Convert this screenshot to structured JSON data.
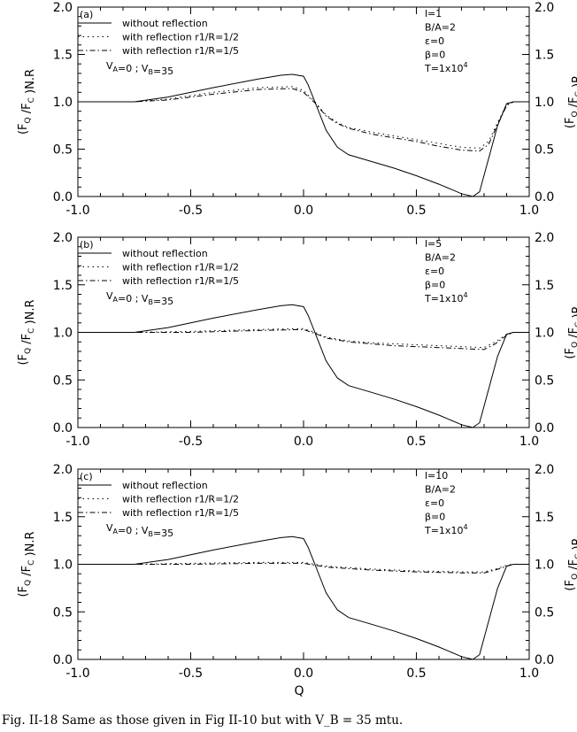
{
  "caption": "Fig. II-18 Same as those given in Fig II-10 but with V_B = 35 mtu.",
  "chart_data": [
    {
      "type": "line",
      "panel_label": "(a)",
      "xlabel": "",
      "ylabel_left": "(F_Q /F_C )N.R",
      "ylabel_right": "(F_Q /F_C )R",
      "xlim": [
        -1.0,
        1.0
      ],
      "ylim": [
        0.0,
        2.0
      ],
      "xticks": [
        "-1.0",
        "-0.5",
        "0.0",
        "0.5",
        "1.0"
      ],
      "yticks": [
        "0.0",
        "0.5",
        "1.0",
        "1.5",
        "2.0"
      ],
      "params": [
        "l=1",
        "B/A=2",
        "ε=0",
        "β=0",
        "T=1x10^4"
      ],
      "velocity_note": "V_A=0 ; V_B=35",
      "legend_position": "top-left",
      "series": [
        {
          "name": "without reflection",
          "style": "solid",
          "x": [
            -1.0,
            -0.75,
            -0.6,
            -0.4,
            -0.2,
            -0.1,
            -0.05,
            0.0,
            0.02,
            0.05,
            0.1,
            0.15,
            0.2,
            0.3,
            0.4,
            0.5,
            0.6,
            0.7,
            0.75,
            0.78,
            0.82,
            0.86,
            0.9,
            0.93,
            1.0
          ],
          "y": [
            1.0,
            1.0,
            1.05,
            1.15,
            1.24,
            1.28,
            1.29,
            1.27,
            1.18,
            1.0,
            0.7,
            0.52,
            0.44,
            0.37,
            0.3,
            0.22,
            0.13,
            0.03,
            0.0,
            0.05,
            0.4,
            0.75,
            0.98,
            1.0,
            1.0
          ]
        },
        {
          "name": "with reflection r1/R=1/2",
          "style": "dotted",
          "x": [
            -1.0,
            -0.75,
            -0.6,
            -0.4,
            -0.2,
            -0.05,
            0.0,
            0.05,
            0.1,
            0.15,
            0.2,
            0.3,
            0.4,
            0.5,
            0.6,
            0.7,
            0.78,
            0.82,
            0.86,
            0.9,
            0.93,
            1.0
          ],
          "y": [
            1.0,
            1.0,
            1.03,
            1.1,
            1.15,
            1.16,
            1.12,
            1.0,
            0.86,
            0.78,
            0.73,
            0.68,
            0.64,
            0.6,
            0.56,
            0.52,
            0.51,
            0.58,
            0.78,
            0.97,
            1.0,
            1.0
          ]
        },
        {
          "name": "with reflection r1/R=1/5",
          "style": "dash-dot",
          "x": [
            -1.0,
            -0.75,
            -0.6,
            -0.4,
            -0.2,
            -0.05,
            0.0,
            0.05,
            0.1,
            0.15,
            0.2,
            0.3,
            0.4,
            0.5,
            0.6,
            0.7,
            0.78,
            0.82,
            0.86,
            0.9,
            0.93,
            1.0
          ],
          "y": [
            1.0,
            1.0,
            1.02,
            1.08,
            1.13,
            1.14,
            1.1,
            0.99,
            0.85,
            0.77,
            0.72,
            0.66,
            0.62,
            0.58,
            0.53,
            0.49,
            0.48,
            0.55,
            0.76,
            0.96,
            1.0,
            1.0
          ]
        }
      ]
    },
    {
      "type": "line",
      "panel_label": "(b)",
      "xlabel": "",
      "ylabel_left": "(F_Q /F_C )N.R",
      "ylabel_right": "(F_Q /F_C )R",
      "xlim": [
        -1.0,
        1.0
      ],
      "ylim": [
        0.0,
        2.0
      ],
      "xticks": [
        "-1.0",
        "-0.5",
        "0.0",
        "0.5",
        "1.0"
      ],
      "yticks": [
        "0.0",
        "0.5",
        "1.0",
        "1.5",
        "2.0"
      ],
      "params": [
        "l=5",
        "B/A=2",
        "ε=0",
        "β=0",
        "T=1x10^4"
      ],
      "velocity_note": "V_A=0 ; V_B=35",
      "legend_position": "top-left",
      "series": [
        {
          "name": "without reflection",
          "style": "solid",
          "x": [
            -1.0,
            -0.75,
            -0.6,
            -0.4,
            -0.2,
            -0.1,
            -0.05,
            0.0,
            0.02,
            0.05,
            0.1,
            0.15,
            0.2,
            0.3,
            0.4,
            0.5,
            0.6,
            0.7,
            0.75,
            0.78,
            0.82,
            0.86,
            0.9,
            0.93,
            1.0
          ],
          "y": [
            1.0,
            1.0,
            1.05,
            1.15,
            1.24,
            1.28,
            1.29,
            1.27,
            1.18,
            1.0,
            0.7,
            0.52,
            0.44,
            0.37,
            0.3,
            0.22,
            0.13,
            0.03,
            0.0,
            0.05,
            0.4,
            0.75,
            0.98,
            1.0,
            1.0
          ]
        },
        {
          "name": "with reflection r1/R=1/2",
          "style": "dotted",
          "x": [
            -1.0,
            -0.75,
            -0.5,
            -0.2,
            0.0,
            0.05,
            0.1,
            0.2,
            0.3,
            0.4,
            0.5,
            0.6,
            0.7,
            0.8,
            0.85,
            0.9,
            0.93,
            1.0
          ],
          "y": [
            1.0,
            1.0,
            1.01,
            1.03,
            1.04,
            1.0,
            0.95,
            0.91,
            0.89,
            0.88,
            0.87,
            0.86,
            0.85,
            0.84,
            0.9,
            0.98,
            1.0,
            1.0
          ]
        },
        {
          "name": "with reflection r1/R=1/5",
          "style": "dash-dot",
          "x": [
            -1.0,
            -0.75,
            -0.5,
            -0.2,
            0.0,
            0.05,
            0.1,
            0.2,
            0.3,
            0.4,
            0.5,
            0.6,
            0.7,
            0.8,
            0.85,
            0.9,
            0.93,
            1.0
          ],
          "y": [
            1.0,
            1.0,
            1.0,
            1.02,
            1.03,
            0.99,
            0.94,
            0.9,
            0.88,
            0.86,
            0.85,
            0.84,
            0.83,
            0.82,
            0.88,
            0.97,
            1.0,
            1.0
          ]
        }
      ]
    },
    {
      "type": "line",
      "panel_label": "(c)",
      "xlabel": "Q",
      "ylabel_left": "(F_Q /F_C )N.R",
      "ylabel_right": "(F_Q /F_C )R",
      "xlim": [
        -1.0,
        1.0
      ],
      "ylim": [
        0.0,
        2.0
      ],
      "xticks": [
        "-1.0",
        "-0.5",
        "0.0",
        "0.5",
        "1.0"
      ],
      "yticks": [
        "0.0",
        "0.5",
        "1.0",
        "1.5",
        "2.0"
      ],
      "params": [
        "l=10",
        "B/A=2",
        "ε=0",
        "β=0",
        "T=1x10^4"
      ],
      "velocity_note": "V_A=0 ; V_B=35",
      "legend_position": "top-left",
      "series": [
        {
          "name": "without reflection",
          "style": "solid",
          "x": [
            -1.0,
            -0.75,
            -0.6,
            -0.4,
            -0.2,
            -0.1,
            -0.05,
            0.0,
            0.02,
            0.05,
            0.1,
            0.15,
            0.2,
            0.3,
            0.4,
            0.5,
            0.6,
            0.7,
            0.75,
            0.78,
            0.82,
            0.86,
            0.9,
            0.93,
            1.0
          ],
          "y": [
            1.0,
            1.0,
            1.05,
            1.15,
            1.24,
            1.28,
            1.29,
            1.27,
            1.18,
            1.0,
            0.7,
            0.52,
            0.44,
            0.37,
            0.3,
            0.22,
            0.13,
            0.03,
            0.0,
            0.05,
            0.4,
            0.75,
            0.98,
            1.0,
            1.0
          ]
        },
        {
          "name": "with reflection r1/R=1/2",
          "style": "dotted",
          "x": [
            -1.0,
            -0.75,
            -0.5,
            -0.2,
            0.0,
            0.1,
            0.3,
            0.5,
            0.7,
            0.8,
            0.85,
            0.9,
            0.93,
            1.0
          ],
          "y": [
            1.0,
            1.0,
            1.01,
            1.02,
            1.02,
            0.98,
            0.95,
            0.93,
            0.92,
            0.92,
            0.95,
            0.99,
            1.0,
            1.0
          ]
        },
        {
          "name": "with reflection r1/R=1/5",
          "style": "dash-dot",
          "x": [
            -1.0,
            -0.75,
            -0.5,
            -0.2,
            0.0,
            0.1,
            0.3,
            0.5,
            0.7,
            0.8,
            0.85,
            0.9,
            0.93,
            1.0
          ],
          "y": [
            1.0,
            1.0,
            1.0,
            1.01,
            1.01,
            0.97,
            0.94,
            0.92,
            0.91,
            0.91,
            0.94,
            0.98,
            1.0,
            1.0
          ]
        }
      ]
    }
  ]
}
